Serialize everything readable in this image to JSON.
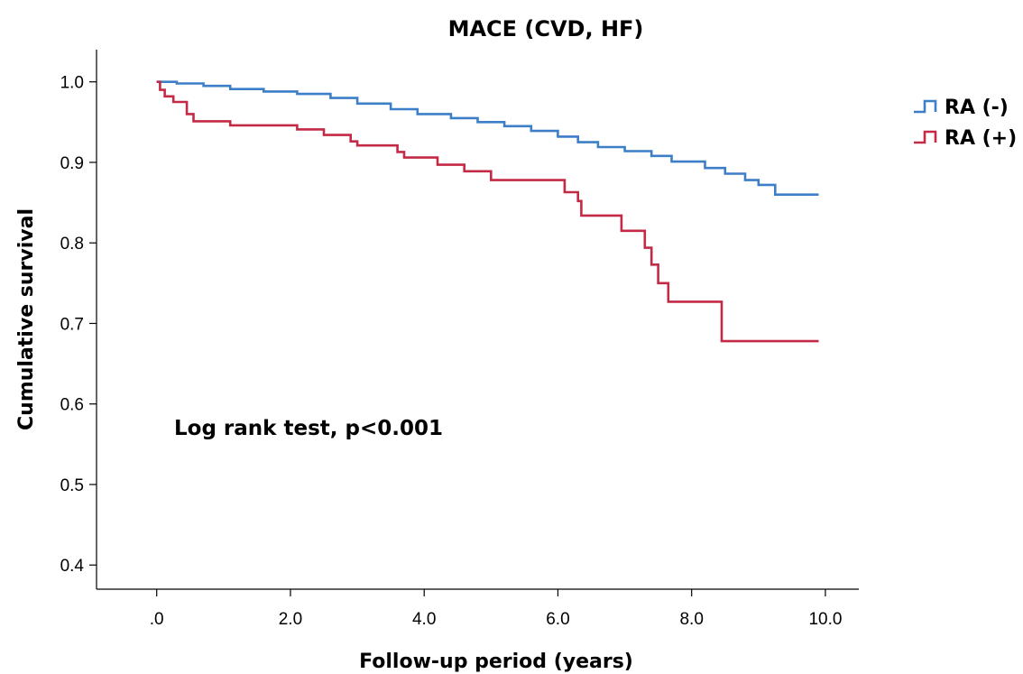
{
  "chart_data": {
    "type": "line",
    "title": "MACE (CVD, HF)",
    "xlabel": "Follow-up period (years)",
    "ylabel": "Cumulative survival",
    "xlim": [
      -0.9,
      10.5
    ],
    "ylim": [
      0.37,
      1.04
    ],
    "x_ticks": [
      0,
      2,
      4,
      6,
      8,
      10
    ],
    "x_tick_labels": [
      ".0",
      "2.0",
      "4.0",
      "6.0",
      "8.0",
      "10.0"
    ],
    "y_ticks": [
      0.4,
      0.5,
      0.6,
      0.7,
      0.8,
      0.9,
      1.0
    ],
    "y_tick_labels": [
      "0.4",
      "0.5",
      "0.6",
      "0.7",
      "0.8",
      "0.9",
      "1.0"
    ],
    "grid": false,
    "legend_position": "right",
    "annotation": "Log rank test, p<0.001",
    "series": [
      {
        "name": "RA (-)",
        "color": "#3c7fc8",
        "step": true,
        "points": [
          [
            0,
            1.0
          ],
          [
            0.3,
            0.998
          ],
          [
            0.7,
            0.995
          ],
          [
            1.1,
            0.991
          ],
          [
            1.6,
            0.988
          ],
          [
            2.1,
            0.985
          ],
          [
            2.6,
            0.98
          ],
          [
            3.0,
            0.973
          ],
          [
            3.5,
            0.966
          ],
          [
            3.9,
            0.96
          ],
          [
            4.4,
            0.955
          ],
          [
            4.8,
            0.95
          ],
          [
            5.2,
            0.945
          ],
          [
            5.6,
            0.939
          ],
          [
            6.0,
            0.932
          ],
          [
            6.3,
            0.925
          ],
          [
            6.6,
            0.919
          ],
          [
            7.0,
            0.914
          ],
          [
            7.4,
            0.908
          ],
          [
            7.7,
            0.901
          ],
          [
            8.2,
            0.893
          ],
          [
            8.5,
            0.886
          ],
          [
            8.8,
            0.878
          ],
          [
            9.0,
            0.872
          ],
          [
            9.25,
            0.86
          ],
          [
            9.9,
            0.86
          ]
        ]
      },
      {
        "name": "RA (+)",
        "color": "#c32a45",
        "step": true,
        "points": [
          [
            0,
            1.0
          ],
          [
            0.05,
            0.99
          ],
          [
            0.12,
            0.982
          ],
          [
            0.25,
            0.975
          ],
          [
            0.45,
            0.96
          ],
          [
            0.55,
            0.951
          ],
          [
            1.1,
            0.946
          ],
          [
            2.1,
            0.941
          ],
          [
            2.5,
            0.934
          ],
          [
            2.9,
            0.926
          ],
          [
            3.0,
            0.921
          ],
          [
            3.6,
            0.913
          ],
          [
            3.7,
            0.906
          ],
          [
            4.2,
            0.897
          ],
          [
            4.6,
            0.889
          ],
          [
            5.0,
            0.878
          ],
          [
            6.1,
            0.863
          ],
          [
            6.3,
            0.852
          ],
          [
            6.35,
            0.834
          ],
          [
            6.95,
            0.815
          ],
          [
            7.3,
            0.794
          ],
          [
            7.4,
            0.773
          ],
          [
            7.5,
            0.75
          ],
          [
            7.65,
            0.727
          ],
          [
            8.45,
            0.678
          ],
          [
            9.9,
            0.678
          ]
        ]
      }
    ]
  }
}
